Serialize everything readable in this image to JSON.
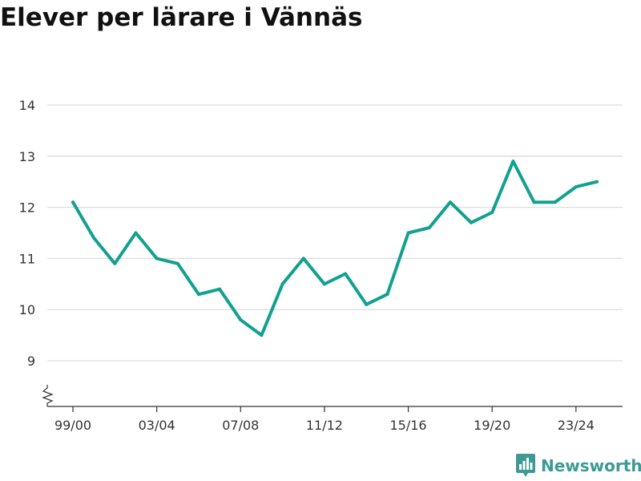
{
  "chart_data": {
    "type": "line",
    "title": "Elever per lärare i Vännäs",
    "xlabel": "",
    "ylabel": "",
    "x": [
      "99/00",
      "00/01",
      "01/02",
      "02/03",
      "03/04",
      "04/05",
      "05/06",
      "06/07",
      "07/08",
      "08/09",
      "09/10",
      "10/11",
      "11/12",
      "12/13",
      "13/14",
      "14/15",
      "15/16",
      "16/17",
      "17/18",
      "18/19",
      "19/20",
      "20/21",
      "21/22",
      "22/23",
      "23/24",
      "24/25"
    ],
    "x_tick_labels": [
      "99/00",
      "03/04",
      "07/08",
      "11/12",
      "15/16",
      "19/20",
      "23/24"
    ],
    "series": [
      {
        "values": [
          12.1,
          11.4,
          10.9,
          11.5,
          11.0,
          10.9,
          10.3,
          10.4,
          9.8,
          9.5,
          10.5,
          11.0,
          10.5,
          10.7,
          10.1,
          10.3,
          11.5,
          11.6,
          12.1,
          11.7,
          11.9,
          12.9,
          12.1,
          12.1,
          12.4,
          12.5
        ]
      }
    ],
    "y_tick_labels": [
      "9",
      "10",
      "11",
      "12",
      "13",
      "14"
    ],
    "ylim": [
      8.3,
      14
    ],
    "y_axis_break": true,
    "grid": true,
    "line_color": "#12a08f"
  },
  "brand": {
    "name": "Newsworthy",
    "color": "#3c9a93"
  }
}
